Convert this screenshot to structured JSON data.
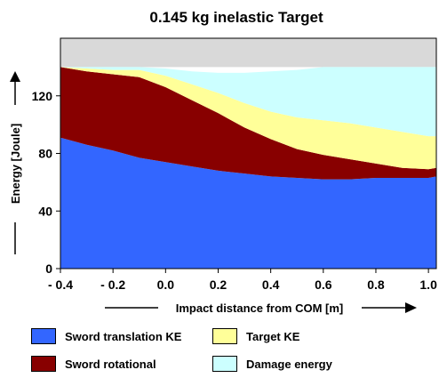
{
  "chart_data": {
    "type": "area",
    "stacked": true,
    "title": "0.145 kg inelastic Target",
    "xlabel": "Impact distance from COM  [m]",
    "ylabel": "Energy [Joule]",
    "xlim": [
      -0.4,
      1.03
    ],
    "ylim": [
      0,
      140
    ],
    "xticks": [
      "- 0.4",
      "- 0.2",
      "0.0",
      "0.2",
      "0.4",
      "0.6",
      "0.8",
      "1.0"
    ],
    "yticks": [
      "0",
      "40",
      "80",
      "120"
    ],
    "x": [
      -0.4,
      -0.3,
      -0.2,
      -0.1,
      0.0,
      0.1,
      0.2,
      0.3,
      0.4,
      0.5,
      0.6,
      0.7,
      0.8,
      0.9,
      1.0,
      1.03
    ],
    "series": [
      {
        "name": "Sword translation KE",
        "color": "#3366ff",
        "values": [
          91,
          86,
          82,
          77,
          74,
          71,
          68,
          66,
          64,
          63,
          62,
          62,
          63,
          63,
          63,
          64
        ]
      },
      {
        "name": "Sword rotational",
        "color": "#880000",
        "values": [
          49,
          51,
          53,
          56,
          52,
          46,
          40,
          32,
          26,
          20,
          17,
          14,
          10,
          7,
          6,
          6
        ]
      },
      {
        "name": "Target KE",
        "color": "#ffff99",
        "values": [
          0,
          2,
          3,
          5,
          8,
          11,
          14,
          17,
          19,
          22,
          24,
          25,
          25,
          25,
          23,
          22
        ]
      },
      {
        "name": "Damage energy",
        "color": "#ccffff",
        "values": [
          0,
          1,
          2,
          2,
          5,
          9,
          14,
          21,
          28,
          33,
          37,
          39,
          42,
          45,
          48,
          48
        ]
      }
    ],
    "upper_band": {
      "color": "#d9d9d9",
      "from": 140,
      "to": 160
    },
    "grid": false,
    "legend_position": "bottom"
  },
  "legend": {
    "sword_translation": "Sword translation KE",
    "target_ke": "Target KE",
    "sword_rotational": "Sword rotational",
    "damage_energy": "Damage energy"
  }
}
